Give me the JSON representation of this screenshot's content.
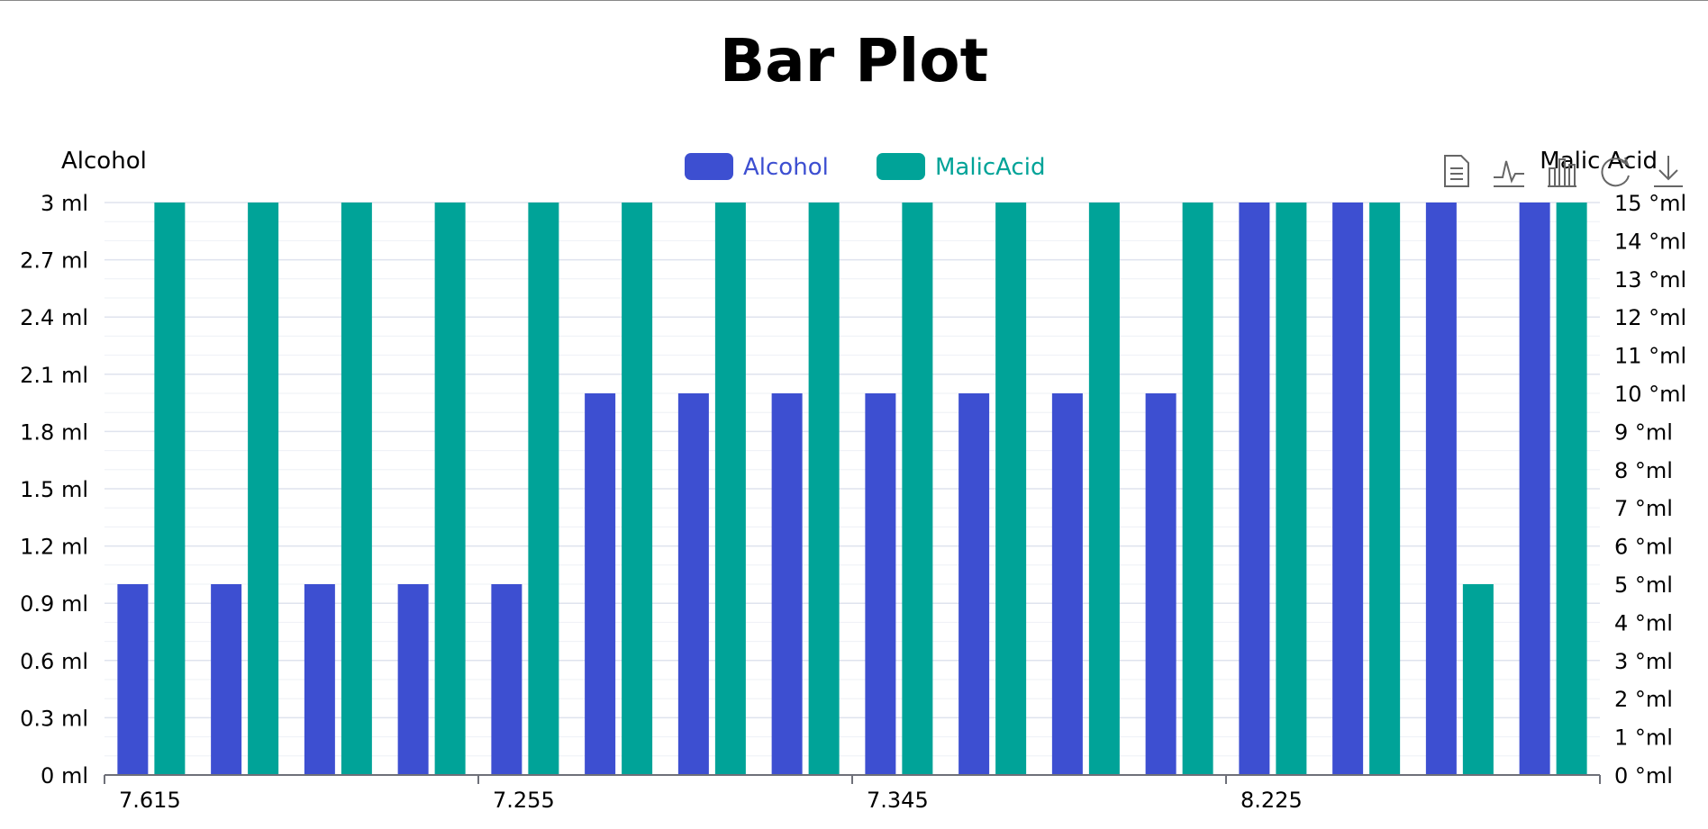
{
  "chart_data": {
    "type": "bar",
    "title": "Bar Plot",
    "categories": [
      "7.615",
      "7.615",
      "7.615",
      "7.615",
      "7.255",
      "7.255",
      "7.255",
      "7.255",
      "7.345",
      "7.345",
      "7.345",
      "7.345",
      "8.225",
      "8.225",
      "8.225",
      "8.225"
    ],
    "x_tick_labels": [
      "7.615",
      "7.255",
      "7.345",
      "8.225"
    ],
    "series": [
      {
        "name": "Alcohol",
        "axis": "left",
        "color": "#3d4fd1",
        "values": [
          1,
          1,
          1,
          1,
          1,
          2,
          2,
          2,
          2,
          2,
          2,
          2,
          3,
          3,
          3,
          3
        ]
      },
      {
        "name": "MalicAcid",
        "axis": "right",
        "color": "#00a398",
        "values": [
          15,
          15,
          15,
          15,
          15,
          15,
          15,
          15,
          15,
          15,
          15,
          15,
          15,
          15,
          5,
          15
        ]
      }
    ],
    "y_left": {
      "name": "Alcohol",
      "min": 0,
      "max": 3,
      "ticks": [
        "0 ml",
        "0.3 ml",
        "0.6 ml",
        "0.9 ml",
        "1.2 ml",
        "1.5 ml",
        "1.8 ml",
        "2.1 ml",
        "2.4 ml",
        "2.7 ml",
        "3 ml"
      ]
    },
    "y_right": {
      "name": "Malic Acid",
      "min": 0,
      "max": 15,
      "ticks": [
        "0 °ml",
        "1 °ml",
        "2 °ml",
        "3 °ml",
        "4 °ml",
        "5 °ml",
        "6 °ml",
        "7 °ml",
        "8 °ml",
        "9 °ml",
        "10 °ml",
        "11 °ml",
        "12 °ml",
        "13 °ml",
        "14 °ml",
        "15 °ml"
      ]
    },
    "grid": true,
    "legend_position": "top-center"
  },
  "toolbox": {
    "icons": [
      "data-view-icon",
      "line-chart-icon",
      "bar-chart-icon",
      "restore-icon",
      "download-icon"
    ]
  }
}
